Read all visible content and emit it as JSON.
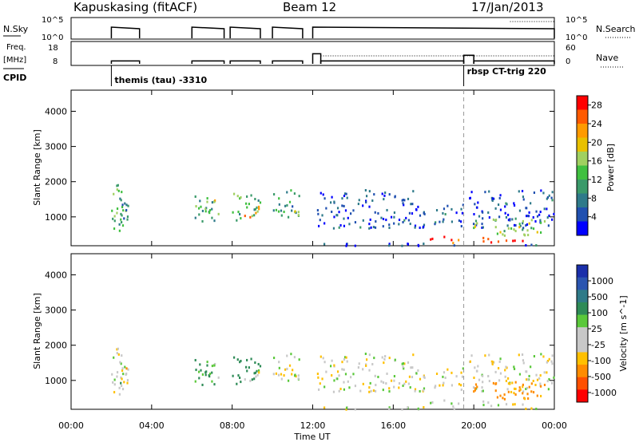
{
  "header": {
    "station": "Kapuskasing (fitACF)",
    "beam": "Beam 12",
    "date": "17/Jan/2013"
  },
  "panels": {
    "nsky": {
      "label": "N.Sky",
      "ticks": [
        "10^5",
        "10^0"
      ],
      "right_label": "N.Search",
      "right_ticks": [
        "10^5",
        "10^0"
      ]
    },
    "freq": {
      "label_top": "Freq.",
      "label_bottom": "[MHz]",
      "ticks": [
        "18",
        "8"
      ],
      "right_label": "Nave",
      "right_ticks": [
        "60",
        "0"
      ]
    },
    "cpid": {
      "label": "CPID",
      "programs": [
        "themis (tau) -3310",
        "rbsp CT-trig 220"
      ]
    }
  },
  "power_colorbar": {
    "title": "Power [dB]",
    "ticks": [
      "28",
      "24",
      "20",
      "16",
      "12",
      "8",
      "4"
    ],
    "colors": [
      "#ff0000",
      "#ff5a00",
      "#ff9a00",
      "#e8c000",
      "#a0d060",
      "#40c040",
      "#3a9a6a",
      "#2e7a8a",
      "#2050b0",
      "#0000ff"
    ]
  },
  "velocity_colorbar": {
    "title": "Velocity [m s^-1]",
    "ticks": [
      "1000",
      "500",
      "100",
      "25",
      "-25",
      "-100",
      "-500",
      "-1000"
    ],
    "colors": [
      "#1a2faa",
      "#2a55b0",
      "#2f7a88",
      "#2e8b57",
      "#5ac83a",
      "#c8c8c8",
      "#c8c8c8",
      "#ffc000",
      "#ff8c00",
      "#ff5000",
      "#ff0000"
    ]
  },
  "chart_data": {
    "type": "heatmap",
    "xlabel": "Time UT",
    "ylabel": "Slant Range [km]",
    "x_ticks": [
      "00:00",
      "04:00",
      "08:00",
      "12:00",
      "16:00",
      "20:00",
      "00:00"
    ],
    "x_range_hours": [
      0,
      24
    ],
    "y_ticks": [
      "4000",
      "3000",
      "2000",
      "1000"
    ],
    "ylim": [
      180,
      4600
    ],
    "program_change_hour": 19.5,
    "nsky_segments": [
      [
        2.0,
        3.4
      ],
      [
        6.0,
        7.6
      ],
      [
        7.9,
        9.4
      ],
      [
        10.0,
        11.5
      ],
      [
        12.0,
        24.0
      ]
    ],
    "freq_segments": [
      {
        "start": 2.0,
        "end": 3.4,
        "mhz": 10
      },
      {
        "start": 6.0,
        "end": 7.6,
        "mhz": 10
      },
      {
        "start": 7.9,
        "end": 9.4,
        "mhz": 10
      },
      {
        "start": 10.0,
        "end": 11.5,
        "mhz": 10
      },
      {
        "start": 12.0,
        "end": 12.4,
        "mhz": 15
      },
      {
        "start": 12.4,
        "end": 19.5,
        "mhz": 10
      },
      {
        "start": 19.5,
        "end": 20.0,
        "mhz": 14
      },
      {
        "start": 20.0,
        "end": 24.0,
        "mhz": 10
      }
    ],
    "scatter_regions": [
      {
        "t0": 1.9,
        "t1": 2.7,
        "r0": 500,
        "r1": 2000,
        "power": 14,
        "vel": 30
      },
      {
        "t0": 2.3,
        "t1": 3.0,
        "r0": 600,
        "r1": 1500,
        "power": 10,
        "vel": -60
      },
      {
        "t0": 6.0,
        "t1": 7.4,
        "r0": 900,
        "r1": 1700,
        "power": 12,
        "vel": 120
      },
      {
        "t0": 6.6,
        "t1": 7.3,
        "r0": 1100,
        "r1": 1500,
        "power": 20,
        "vel": 40
      },
      {
        "t0": 7.9,
        "t1": 9.4,
        "r0": 900,
        "r1": 1700,
        "power": 14,
        "vel": 200
      },
      {
        "t0": 8.5,
        "t1": 9.3,
        "r0": 1000,
        "r1": 1400,
        "power": 22,
        "vel": 20
      },
      {
        "t0": 10.0,
        "t1": 11.4,
        "r0": 1000,
        "r1": 1800,
        "power": 12,
        "vel": 10
      },
      {
        "t0": 10.1,
        "t1": 11.3,
        "r0": 1050,
        "r1": 1300,
        "power": 18,
        "vel": 0
      },
      {
        "t0": 12.2,
        "t1": 17.0,
        "r0": 700,
        "r1": 1800,
        "power": 6,
        "vel": 10
      },
      {
        "t0": 17.0,
        "t1": 19.5,
        "r0": 700,
        "r1": 1400,
        "power": 6,
        "vel": -10
      },
      {
        "t0": 17.8,
        "t1": 19.5,
        "r0": 280,
        "r1": 480,
        "power": 28,
        "vel": 30
      },
      {
        "t0": 19.6,
        "t1": 24.0,
        "r0": 700,
        "r1": 1800,
        "power": 6,
        "vel": 0
      },
      {
        "t0": 19.6,
        "t1": 23.5,
        "r0": 500,
        "r1": 1000,
        "power": 16,
        "vel": -150
      },
      {
        "t0": 20.0,
        "t1": 22.5,
        "r0": 280,
        "r1": 480,
        "power": 28,
        "vel": 20
      },
      {
        "t0": 12.0,
        "t1": 24.0,
        "r0": 200,
        "r1": 280,
        "power": 6,
        "vel": 40
      }
    ]
  }
}
